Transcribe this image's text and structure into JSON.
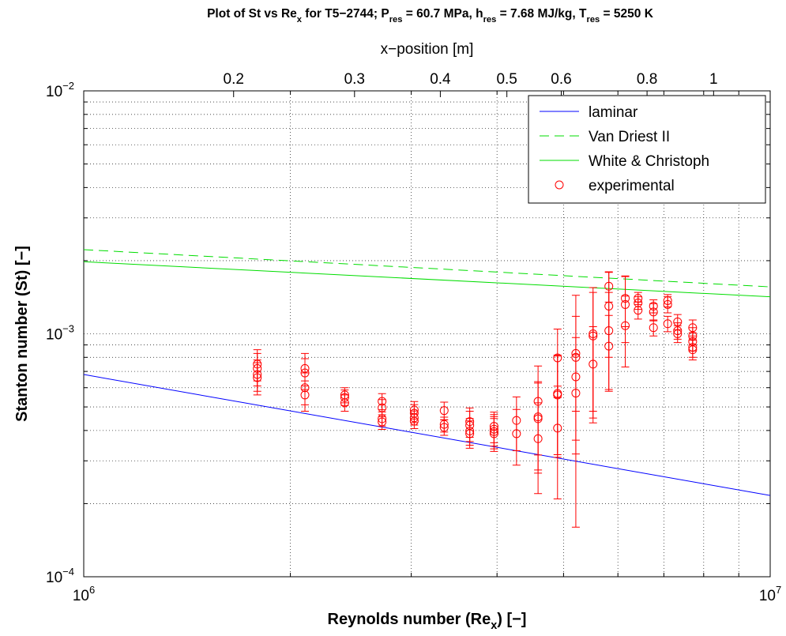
{
  "chart_data": {
    "type": "line",
    "title": [
      "Plot of St vs Re",
      "x",
      " for T5−2744; P",
      "res",
      " = 60.7 MPa, h",
      "res",
      " = 7.68 MJ/kg, T",
      "res",
      " = 5250 K"
    ],
    "xlabel": [
      "Reynolds number (Re",
      "x",
      ") [−]"
    ],
    "ylabel": "Stanton number (St) [−]",
    "x2label": "x−position [m]",
    "xscale": "log",
    "yscale": "log",
    "x2scale": "log",
    "xlim": [
      1000000,
      10000000
    ],
    "ylim": [
      0.0001,
      0.01
    ],
    "x2lim": [
      0.121,
      1.209
    ],
    "xticks": [
      {
        "value": 1000000,
        "label": [
          "10",
          "6"
        ]
      },
      {
        "value": 10000000,
        "label": [
          "10",
          "7"
        ]
      }
    ],
    "yticks": [
      {
        "value": 0.0001,
        "label": [
          "10",
          "−4"
        ]
      },
      {
        "value": 0.001,
        "label": [
          "10",
          "−3"
        ]
      },
      {
        "value": 0.01,
        "label": [
          "10",
          "−2"
        ]
      }
    ],
    "x2ticks": [
      0.2,
      0.3,
      0.4,
      0.5,
      0.6,
      0.8,
      1
    ],
    "xminorticks": [
      2000000,
      3000000,
      4000000,
      5000000,
      6000000,
      7000000,
      8000000,
      9000000
    ],
    "yminorticks": [
      0.0002,
      0.0003,
      0.0004,
      0.0005,
      0.0006,
      0.0007,
      0.0008,
      0.0009,
      0.002,
      0.003,
      0.004,
      0.005,
      0.006,
      0.007,
      0.008,
      0.009
    ],
    "grid": true,
    "legend": "upper right",
    "series": [
      {
        "name": "laminar",
        "color": "#0000ff",
        "linestyle": "-",
        "x": [
          1000000,
          10000000
        ],
        "values": [
          0.00068,
          0.000216
        ]
      },
      {
        "name": "Van Driest II",
        "color": "#00dd00",
        "linestyle": "--",
        "x": [
          1000000,
          10000000
        ],
        "values": [
          0.00222,
          0.00156
        ]
      },
      {
        "name": "White & Christoph",
        "color": "#00dd00",
        "linestyle": "-",
        "x": [
          1000000,
          10000000
        ],
        "values": [
          0.00198,
          0.00142
        ]
      },
      {
        "name": "experimental",
        "color": "#ff0000",
        "linestyle": "none",
        "marker": "o",
        "x": [
          1790000,
          1790000,
          1790000,
          1790000,
          2100000,
          2100000,
          2100000,
          2100000,
          2400000,
          2400000,
          2400000,
          2720000,
          2720000,
          2720000,
          2720000,
          3030000,
          3030000,
          3030000,
          3030000,
          3350000,
          3350000,
          3350000,
          3650000,
          3650000,
          3650000,
          3650000,
          3960000,
          3960000,
          3960000,
          3960000,
          4270000,
          4270000,
          4590000,
          4590000,
          4590000,
          4590000,
          4900000,
          4900000,
          4900000,
          4900000,
          5210000,
          5210000,
          5210000,
          5210000,
          5520000,
          5520000,
          5520000,
          5820000,
          5820000,
          5820000,
          5820000,
          6150000,
          6150000,
          6150000,
          6420000,
          6420000,
          6420000,
          6760000,
          6760000,
          6760000,
          7090000,
          7090000,
          7090000,
          7330000,
          7330000,
          7330000,
          7710000,
          7710000,
          7710000,
          7710000,
          7710000
        ],
        "values": [
          0.00075,
          0.00072,
          0.00068,
          0.00066,
          0.00072,
          0.00069,
          0.0006,
          0.00056,
          0.00056,
          0.000547,
          0.00052,
          0.000527,
          0.000496,
          0.000447,
          0.000434,
          0.000486,
          0.000471,
          0.000451,
          0.000437,
          0.000483,
          0.000424,
          0.000412,
          0.000435,
          0.00042,
          0.000398,
          0.000388,
          0.000416,
          0.000405,
          0.000396,
          0.000388,
          0.00044,
          0.000388,
          0.000527,
          0.000455,
          0.000447,
          0.00037,
          0.000796,
          0.000568,
          0.00056,
          0.000409,
          0.00083,
          0.0008,
          0.000665,
          0.00057,
          0.001,
          0.00098,
          0.00075,
          0.00157,
          0.0013,
          0.00103,
          0.00089,
          0.0014,
          0.00132,
          0.00108,
          0.0014,
          0.00134,
          0.00125,
          0.0013,
          0.00123,
          0.00106,
          0.00137,
          0.00132,
          0.0011,
          0.00112,
          0.00103,
          0.001,
          0.00106,
          0.00098,
          0.00093,
          0.00088,
          0.00086
        ],
        "errors": [
          0.00011,
          0.00011,
          0.0001,
          0.0001,
          0.00011,
          0.0001,
          9e-05,
          8e-05,
          4e-05,
          4e-05,
          4e-05,
          4e-05,
          4e-05,
          3e-05,
          3e-05,
          4e-05,
          4e-05,
          3e-05,
          3e-05,
          4e-05,
          3e-05,
          3e-05,
          6e-05,
          6e-05,
          5e-05,
          5e-05,
          6e-05,
          6e-05,
          6e-05,
          6e-05,
          0.00011,
          0.0001,
          0.00021,
          0.00018,
          0.00018,
          0.00015,
          0.00025,
          0.00025,
          0.00025,
          0.0002,
          0.00035,
          0.00064,
          0.0003,
          0.00025,
          0.00055,
          0.0005,
          0.00032,
          0.00022,
          0.0005,
          0.00045,
          0.0003,
          0.00033,
          0.0004,
          0.00035,
          8e-05,
          8e-05,
          0.0001,
          8e-05,
          0.0001,
          8e-05,
          8e-05,
          0.0001,
          8e-05,
          8e-05,
          8e-05,
          8e-05,
          8e-05,
          8e-05,
          8e-05,
          8e-05,
          8e-05
        ]
      }
    ]
  }
}
